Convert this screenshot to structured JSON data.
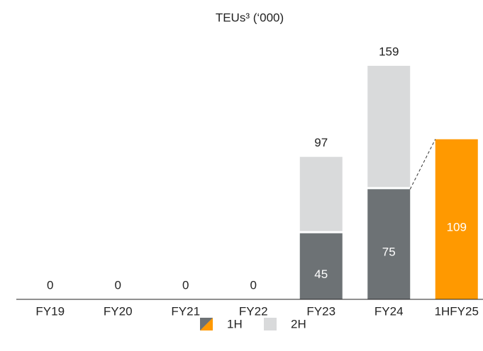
{
  "chart_data": {
    "type": "stacked_bar",
    "title": "TEUs³ (‘000)",
    "categories": [
      "FY19",
      "FY20",
      "FY21",
      "FY22",
      "FY23",
      "FY24",
      "1HFY25"
    ],
    "series": [
      {
        "name": "1H",
        "color": "#6d7275",
        "colors": [
          "#6d7275",
          "#6d7275",
          "#6d7275",
          "#6d7275",
          "#6d7275",
          "#6d7275",
          "#ff9900"
        ],
        "values": [
          0,
          0,
          0,
          0,
          45,
          75,
          109
        ]
      },
      {
        "name": "2H",
        "color": "#d9dadb",
        "values": [
          0,
          0,
          0,
          0,
          52,
          84,
          null
        ]
      }
    ],
    "totals": [
      0,
      0,
      0,
      0,
      97,
      159,
      null
    ]
  }
}
